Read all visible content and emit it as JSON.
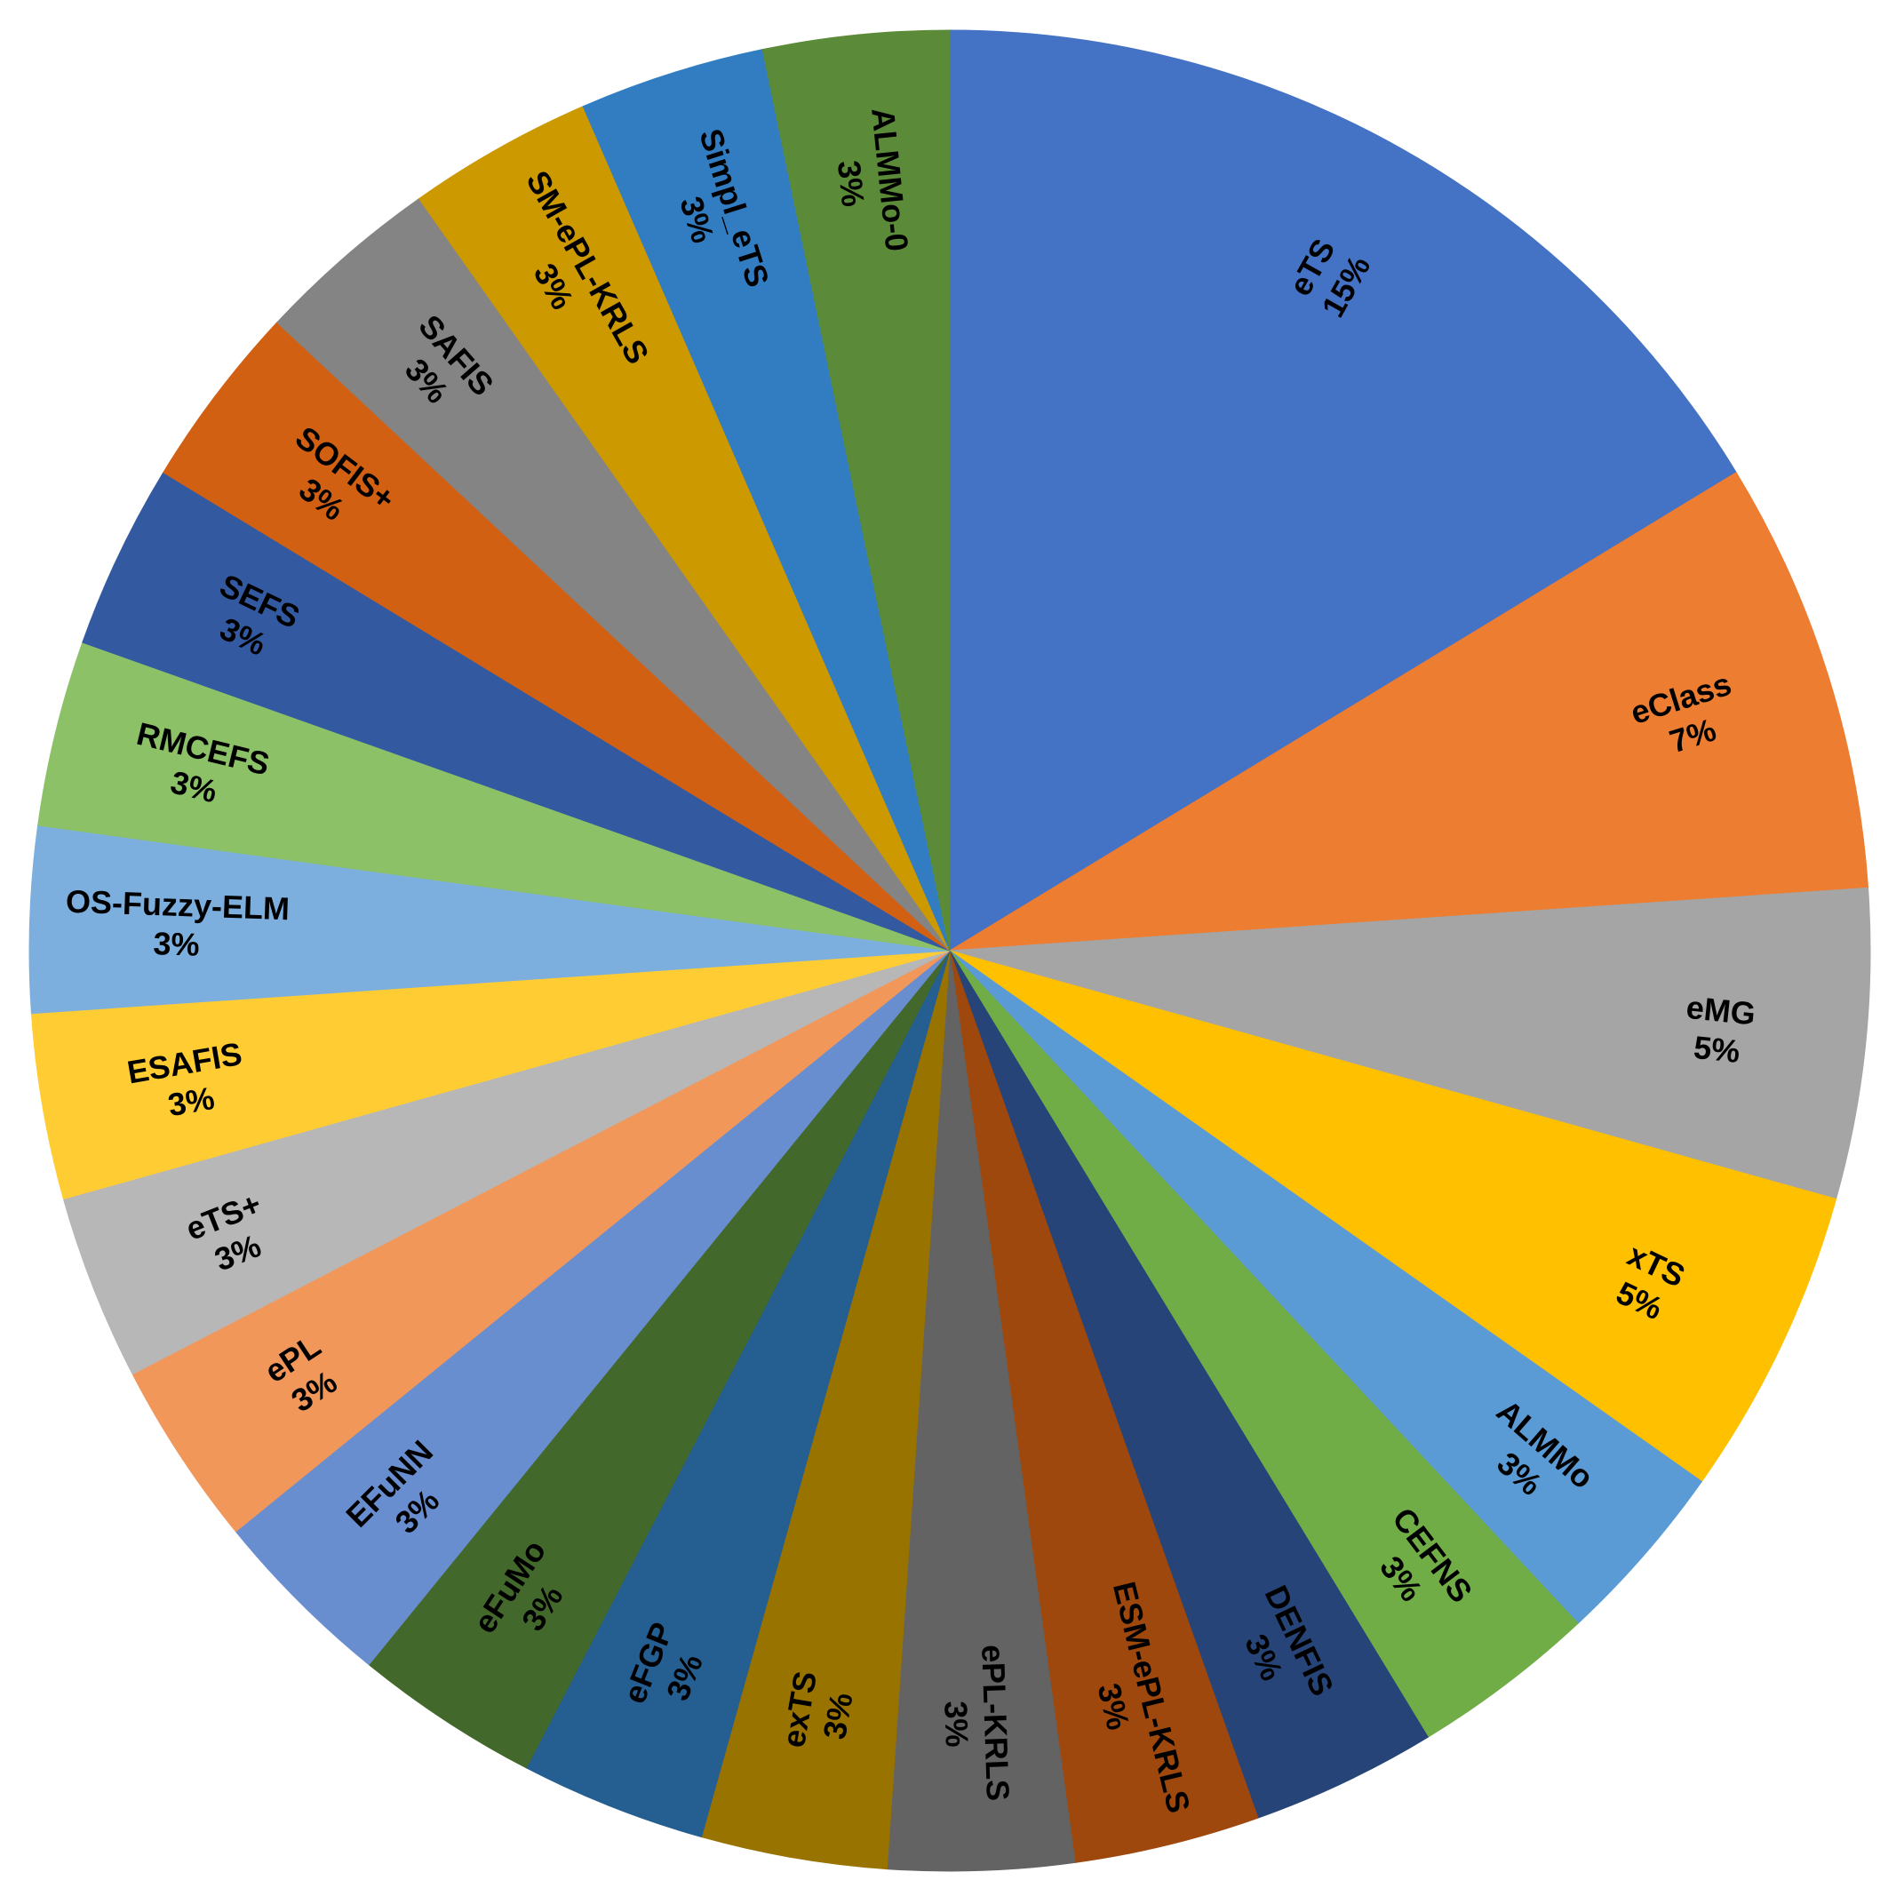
{
  "chart_data": {
    "type": "pie",
    "title": "",
    "start": "12 o'clock",
    "direction": "clockwise",
    "slices": [
      {
        "name": "eTS",
        "label": "eTS",
        "pct_label": "15%",
        "value": 15,
        "color": "#4472C4"
      },
      {
        "name": "eClass",
        "label": "eClass",
        "pct_label": "7%",
        "value": 7,
        "color": "#ED7D31"
      },
      {
        "name": "eMG",
        "label": "eMG",
        "pct_label": "5%",
        "value": 5,
        "color": "#A5A5A5"
      },
      {
        "name": "xTS",
        "label": "xTS",
        "pct_label": "5%",
        "value": 5,
        "color": "#FFC000"
      },
      {
        "name": "ALMMo",
        "label": "ALMMo",
        "pct_label": "3%",
        "value": 3,
        "color": "#5B9BD5"
      },
      {
        "name": "CEFNS",
        "label": "CEFNS",
        "pct_label": "3%",
        "value": 3,
        "color": "#70AD47"
      },
      {
        "name": "DENFIS",
        "label": "DENFIS",
        "pct_label": "3%",
        "value": 3,
        "color": "#264478"
      },
      {
        "name": "ESM-ePL-KRLS",
        "label": "ESM-ePL-KRLS",
        "pct_label": "3%",
        "value": 3,
        "color": "#9E480E"
      },
      {
        "name": "ePL-KRLS",
        "label": "ePL-KRLS",
        "pct_label": "3%",
        "value": 3,
        "color": "#636363"
      },
      {
        "name": "exTS",
        "label": "exTS",
        "pct_label": "3%",
        "value": 3,
        "color": "#997300"
      },
      {
        "name": "eFGP",
        "label": "eFGP",
        "pct_label": "3%",
        "value": 3,
        "color": "#255E91"
      },
      {
        "name": "eFuMo",
        "label": "eFuMo",
        "pct_label": "3%",
        "value": 3,
        "color": "#43682B"
      },
      {
        "name": "EFuNN",
        "label": "EFuNN",
        "pct_label": "3%",
        "value": 3,
        "color": "#698ED0"
      },
      {
        "name": "ePL",
        "label": "ePL",
        "pct_label": "3%",
        "value": 3,
        "color": "#F1975A"
      },
      {
        "name": "eTS+",
        "label": "eTS+",
        "pct_label": "3%",
        "value": 3,
        "color": "#B7B7B7"
      },
      {
        "name": "ESAFIS",
        "label": "ESAFIS",
        "pct_label": "3%",
        "value": 3,
        "color": "#FFCD33"
      },
      {
        "name": "OS-Fuzzy-ELM",
        "label": "OS-Fuzzy-ELM",
        "pct_label": "3%",
        "value": 3,
        "color": "#7CAFDD"
      },
      {
        "name": "RMCEFS",
        "label": "RMCEFS",
        "pct_label": "3%",
        "value": 3,
        "color": "#8CC168"
      },
      {
        "name": "SEFS",
        "label": "SEFS",
        "pct_label": "3%",
        "value": 3,
        "color": "#335AA1"
      },
      {
        "name": "SOFIS+",
        "label": "SOFIS+",
        "pct_label": "3%",
        "value": 3,
        "color": "#D26012"
      },
      {
        "name": "SAFIS",
        "label": "SAFIS",
        "pct_label": "3%",
        "value": 3,
        "color": "#848484"
      },
      {
        "name": "SM-ePL-KRLS",
        "label": "SM-ePL-KRLS",
        "pct_label": "3%",
        "value": 3,
        "color": "#CC9900"
      },
      {
        "name": "Simpl_eTS",
        "label": "Simpl_eTS",
        "pct_label": "3%",
        "value": 3,
        "color": "#327DC2"
      },
      {
        "name": "ALMMo-0",
        "label": "ALMMo-0",
        "pct_label": "3%",
        "value": 3,
        "color": "#5B8B38"
      }
    ]
  }
}
